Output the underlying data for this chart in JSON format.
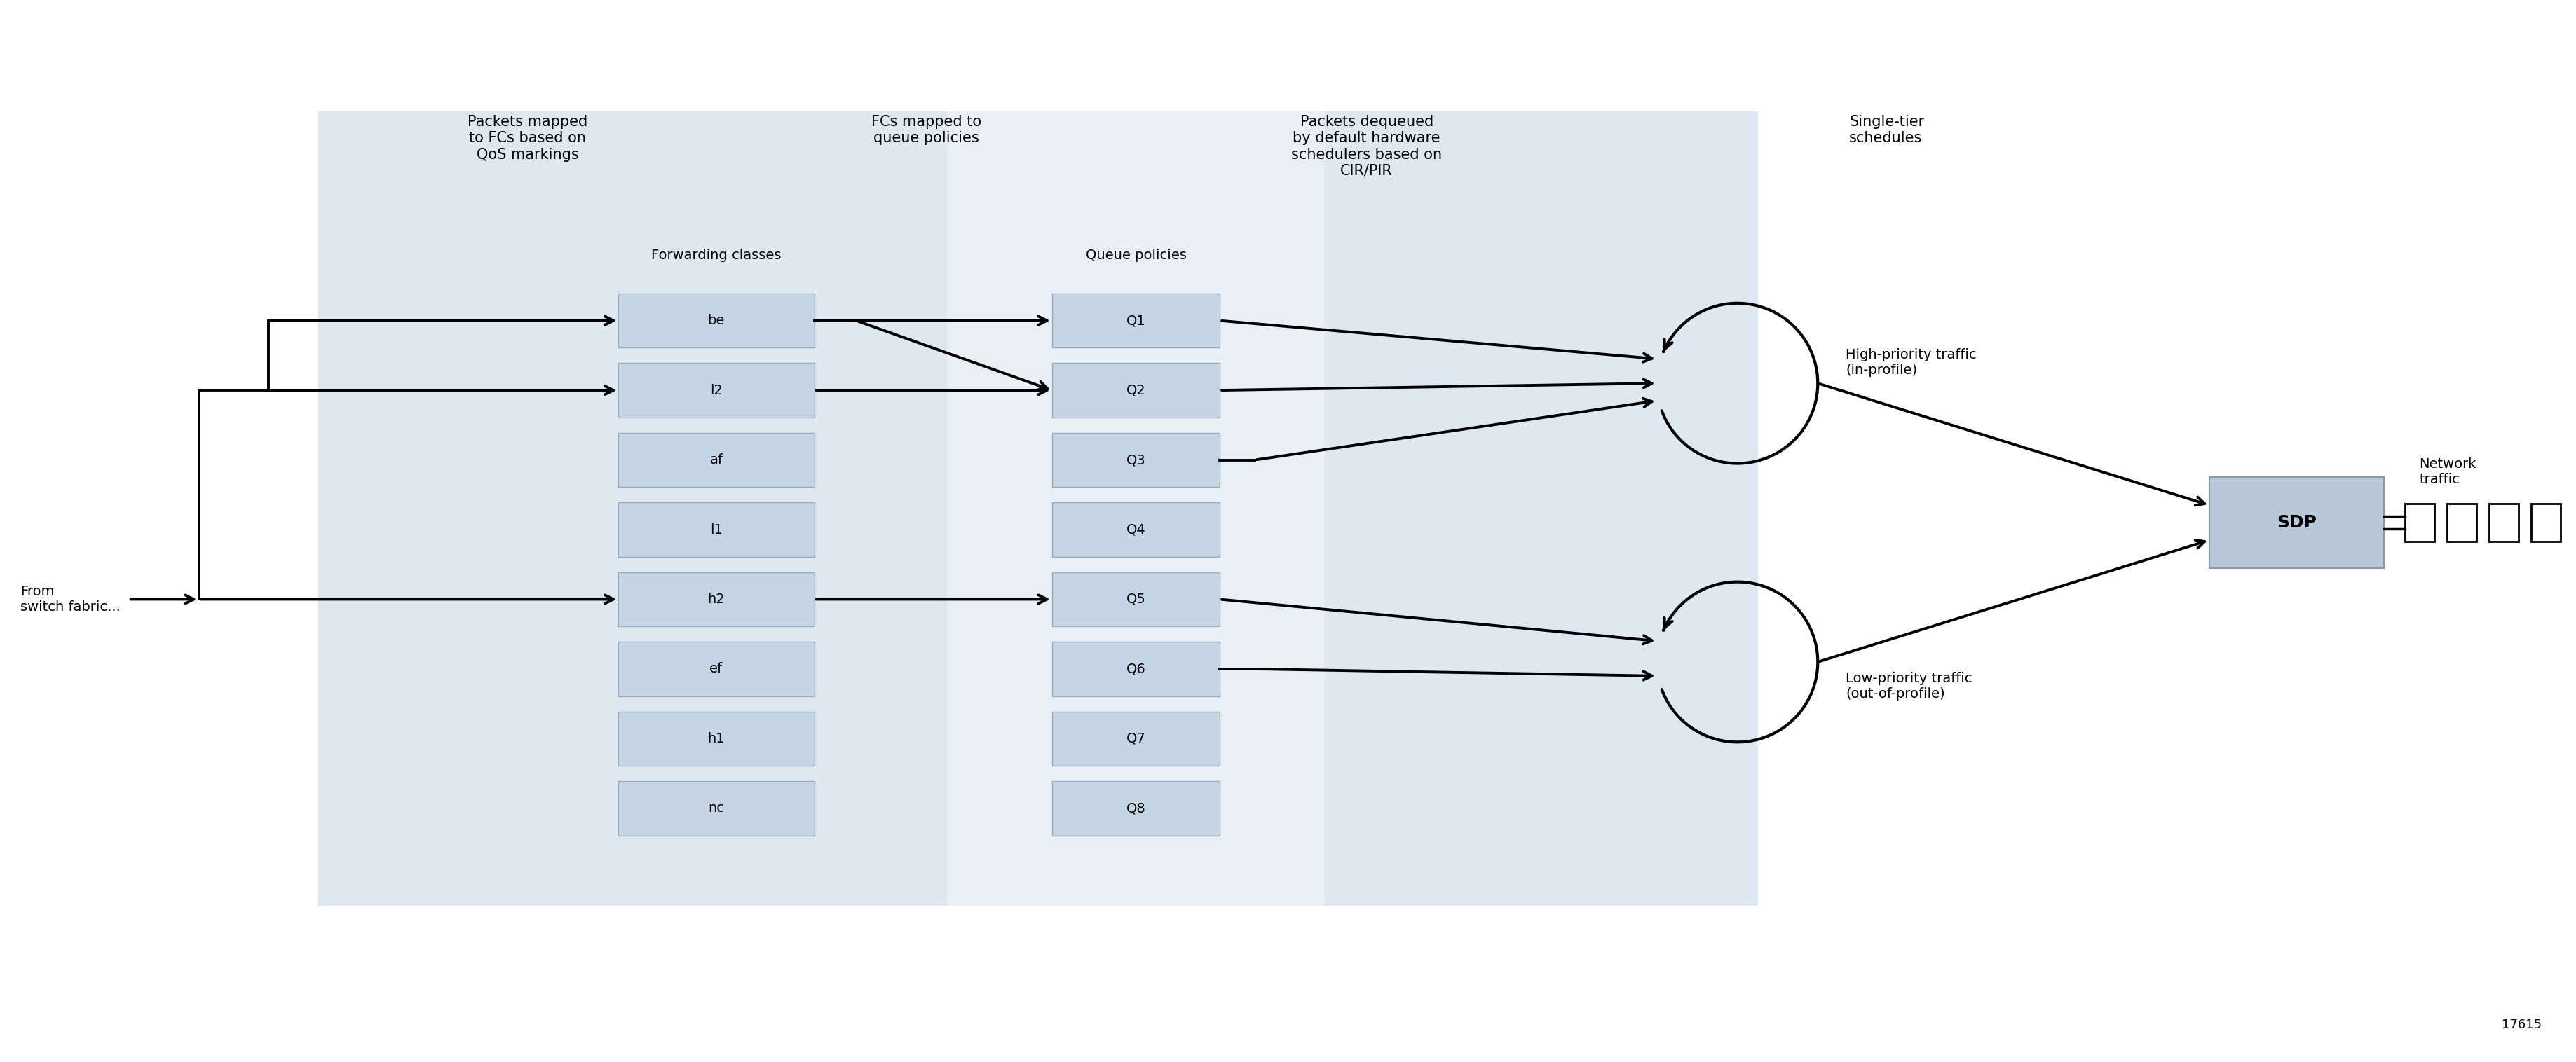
{
  "bg_color": "#ffffff",
  "panel1_color": "#dde8f0",
  "panel2_color": "#e8f0f5",
  "panel3_color": "#dde8f0",
  "box_fill": "#c5d5e5",
  "box_edge": "#9aaabb",
  "sdp_fill": "#b8c8d8",
  "sdp_edge": "#8899aa",
  "text_color": "#000000",
  "arrow_color": "#000000",
  "fc_labels": [
    "be",
    "l2",
    "af",
    "l1",
    "h2",
    "ef",
    "h1",
    "nc"
  ],
  "q_labels": [
    "Q1",
    "Q2",
    "Q3",
    "Q4",
    "Q5",
    "Q6",
    "Q7",
    "Q8"
  ],
  "ann_packets_mapped": "Packets mapped\nto FCs based on\nQoS markings",
  "ann_fcs_mapped": "FCs mapped to\nqueue policies",
  "ann_packets_dequeued": "Packets dequeued\nby default hardware\nschedulers based on\nCIR/PIR",
  "ann_single_tier": "Single-tier\nschedules",
  "lbl_forwarding": "Forwarding classes",
  "lbl_queue": "Queue policies",
  "lbl_from": "From\nswitch fabric...",
  "lbl_high": "High-priority traffic\n(in-profile)",
  "lbl_low": "Low-priority traffic\n(out-of-profile)",
  "lbl_sdp": "SDP",
  "lbl_network": "Network\ntraffic",
  "lbl_id": "17615"
}
